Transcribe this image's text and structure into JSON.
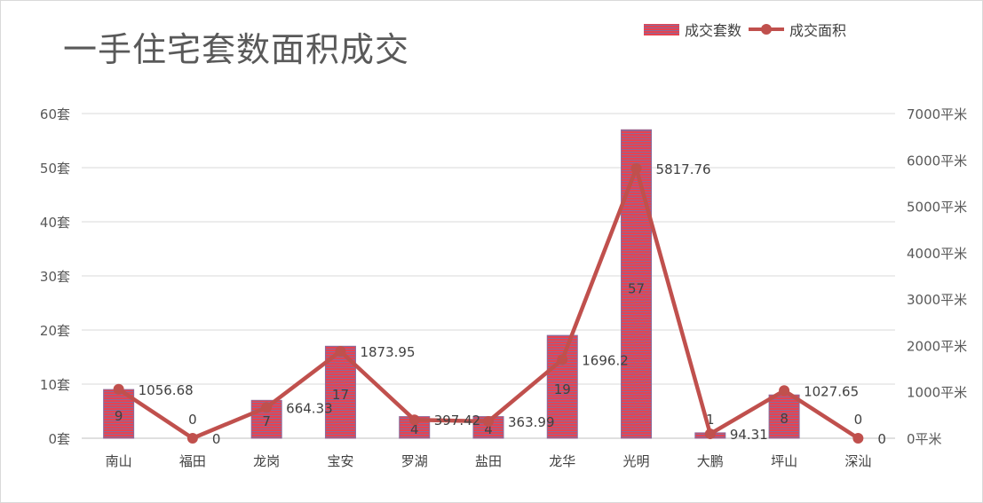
{
  "chart_data": {
    "type": "bar",
    "title": "一手住宅套数面积成交",
    "categories": [
      "南山",
      "福田",
      "龙岗",
      "宝安",
      "罗湖",
      "盐田",
      "龙华",
      "光明",
      "大鹏",
      "坪山",
      "深汕"
    ],
    "series": [
      {
        "name": "成交套数",
        "type": "bar",
        "axis": "left",
        "values": [
          9,
          0,
          7,
          17,
          4,
          4,
          19,
          57,
          1,
          8,
          0
        ],
        "labels": [
          "9",
          "0",
          "7",
          "17",
          "4",
          "4",
          "19",
          "57",
          "1",
          "8",
          "0"
        ],
        "color": "#e8424f"
      },
      {
        "name": "成交面积",
        "type": "line",
        "axis": "right",
        "values": [
          1056.68,
          0,
          664.33,
          1873.95,
          397.42,
          363.99,
          1696.2,
          5817.76,
          94.31,
          1027.65,
          0
        ],
        "labels": [
          "1056.68",
          "0",
          "664.33",
          "1873.95",
          "397.42",
          "363.99",
          "1696.2",
          "5817.76",
          "94.31",
          "1027.65",
          "0"
        ],
        "color": "#c0504d"
      }
    ],
    "y_left": {
      "range": [
        0,
        60
      ],
      "ticks": [
        0,
        10,
        20,
        30,
        40,
        50,
        60
      ],
      "tick_labels": [
        "0套",
        "10套",
        "20套",
        "30套",
        "40套",
        "50套",
        "60套"
      ]
    },
    "y_right": {
      "range": [
        0,
        7000
      ],
      "ticks": [
        0,
        1000,
        2000,
        3000,
        4000,
        5000,
        6000,
        7000
      ],
      "tick_labels": [
        "0平米",
        "1000平米",
        "2000平米",
        "3000平米",
        "4000平米",
        "5000平米",
        "6000平米",
        "7000平米"
      ]
    },
    "grid": true,
    "legend_position": "top-right"
  }
}
